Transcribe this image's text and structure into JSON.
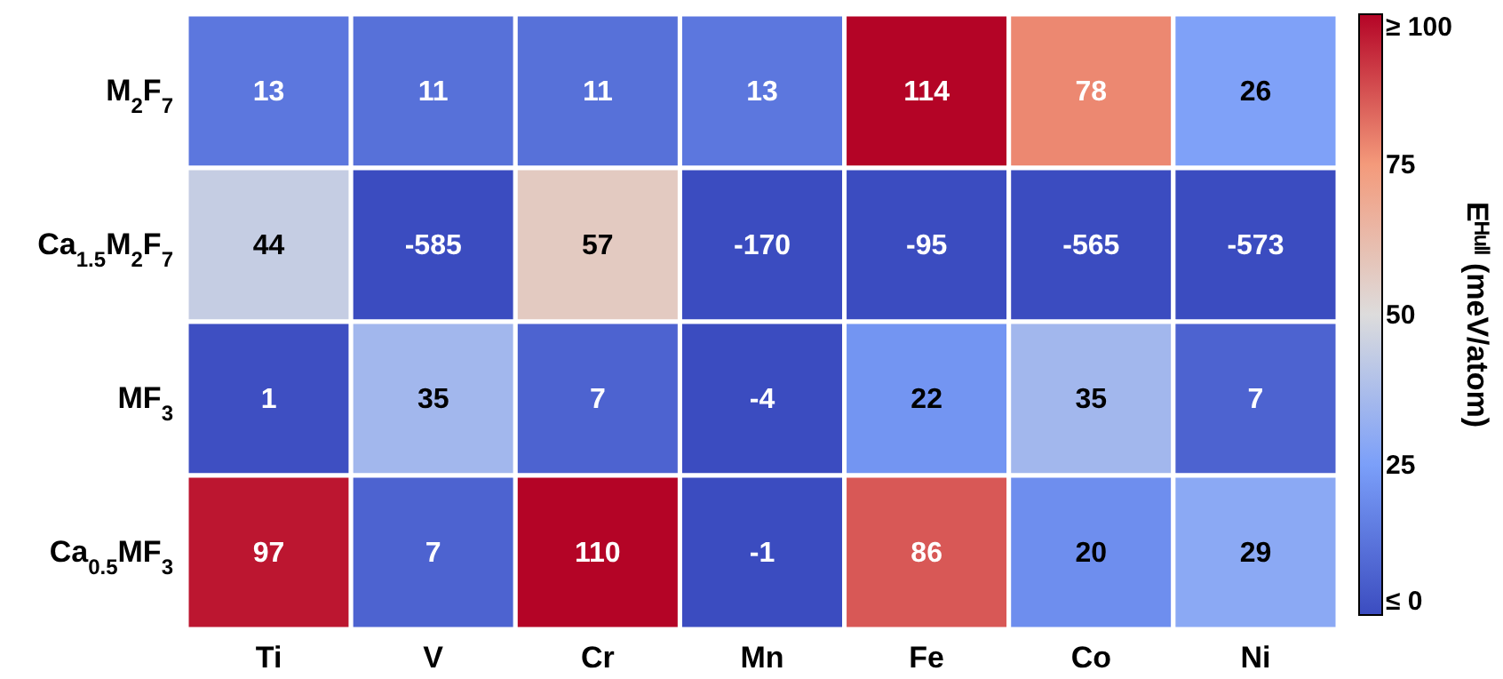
{
  "chart_data": {
    "type": "heatmap",
    "categories": [
      "Ti",
      "V",
      "Cr",
      "Mn",
      "Fe",
      "Co",
      "Ni"
    ],
    "y_categories": [
      "M$_{2}$F$_{7}$",
      "Ca$_{1.5}$M$_{2}$F$_{7}$",
      "MF$_{3}$",
      "Ca$_{0.5}$MF$_{3}$"
    ],
    "cells": [
      [
        13,
        11,
        11,
        13,
        114,
        78,
        26
      ],
      [
        44,
        -585,
        57,
        -170,
        -95,
        -565,
        -573
      ],
      [
        1,
        35,
        7,
        -4,
        22,
        35,
        7
      ],
      [
        97,
        7,
        110,
        -1,
        86,
        20,
        29
      ]
    ],
    "clabel": "Eᴴᵘˡˡ (meV/atom)",
    "clim": [
      0,
      100
    ],
    "cticks": [
      {
        "value": 0,
        "label": "≤ 0"
      },
      25,
      50,
      75,
      {
        "value": 100,
        "label": "≥ 100"
      }
    ],
    "data_labels": true
  }
}
